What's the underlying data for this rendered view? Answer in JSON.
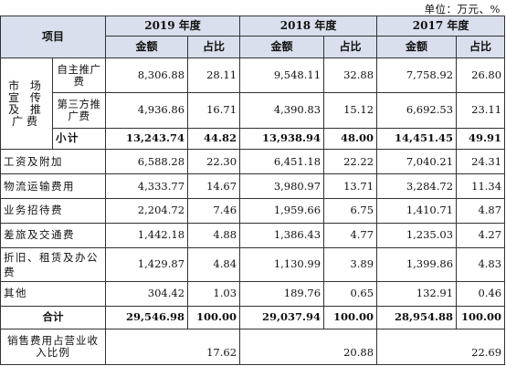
{
  "unit_note": "单位：万元、%",
  "header": {
    "project": "项目",
    "years": [
      "2019 年度",
      "2018 年度",
      "2017 年度"
    ],
    "amount": "金额",
    "ratio": "占比"
  },
  "market_group": {
    "label_lines": [
      "市 场",
      "宣 传",
      "及 推",
      "广费"
    ],
    "rows": [
      {
        "label": "自主推广费",
        "values": [
          "8,306.88",
          "28.11",
          "9,548.11",
          "32.88",
          "7,758.92",
          "26.80"
        ]
      },
      {
        "label": "第三方推广费",
        "values": [
          "4,936.86",
          "16.71",
          "4,390.83",
          "15.12",
          "6,692.53",
          "23.11"
        ]
      }
    ],
    "subtotal": {
      "label": "小计",
      "values": [
        "13,243.74",
        "44.82",
        "13,938.94",
        "48.00",
        "14,451.45",
        "49.91"
      ]
    }
  },
  "rows": [
    {
      "label": "工资及附加",
      "values": [
        "6,588.28",
        "22.30",
        "6,451.18",
        "22.22",
        "7,040.21",
        "24.31"
      ]
    },
    {
      "label": "物流运输费用",
      "values": [
        "4,333.77",
        "14.67",
        "3,980.97",
        "13.71",
        "3,284.72",
        "11.34"
      ]
    },
    {
      "label": "业务招待费",
      "values": [
        "2,204.72",
        "7.46",
        "1,959.66",
        "6.75",
        "1,410.71",
        "4.87"
      ]
    },
    {
      "label": "差旅及交通费",
      "values": [
        "1,442.18",
        "4.88",
        "1,386.43",
        "4.77",
        "1,235.03",
        "4.27"
      ]
    },
    {
      "label": "折旧、租赁及办公费",
      "values": [
        "1,429.87",
        "4.84",
        "1,130.99",
        "3.89",
        "1,399.86",
        "4.83"
      ]
    },
    {
      "label": "其他",
      "values": [
        "304.42",
        "1.03",
        "189.76",
        "0.65",
        "132.91",
        "0.46"
      ]
    }
  ],
  "total": {
    "label": "合计",
    "values": [
      "29,546.98",
      "100.00",
      "29,037.94",
      "100.00",
      "28,954.88",
      "100.00"
    ]
  },
  "ratio_row": {
    "label": "销售费用占营业收入比例",
    "values": [
      "17.62",
      "20.88",
      "22.69"
    ]
  },
  "colors": {
    "header_bg": "#d9dfec",
    "border": "#333333"
  }
}
